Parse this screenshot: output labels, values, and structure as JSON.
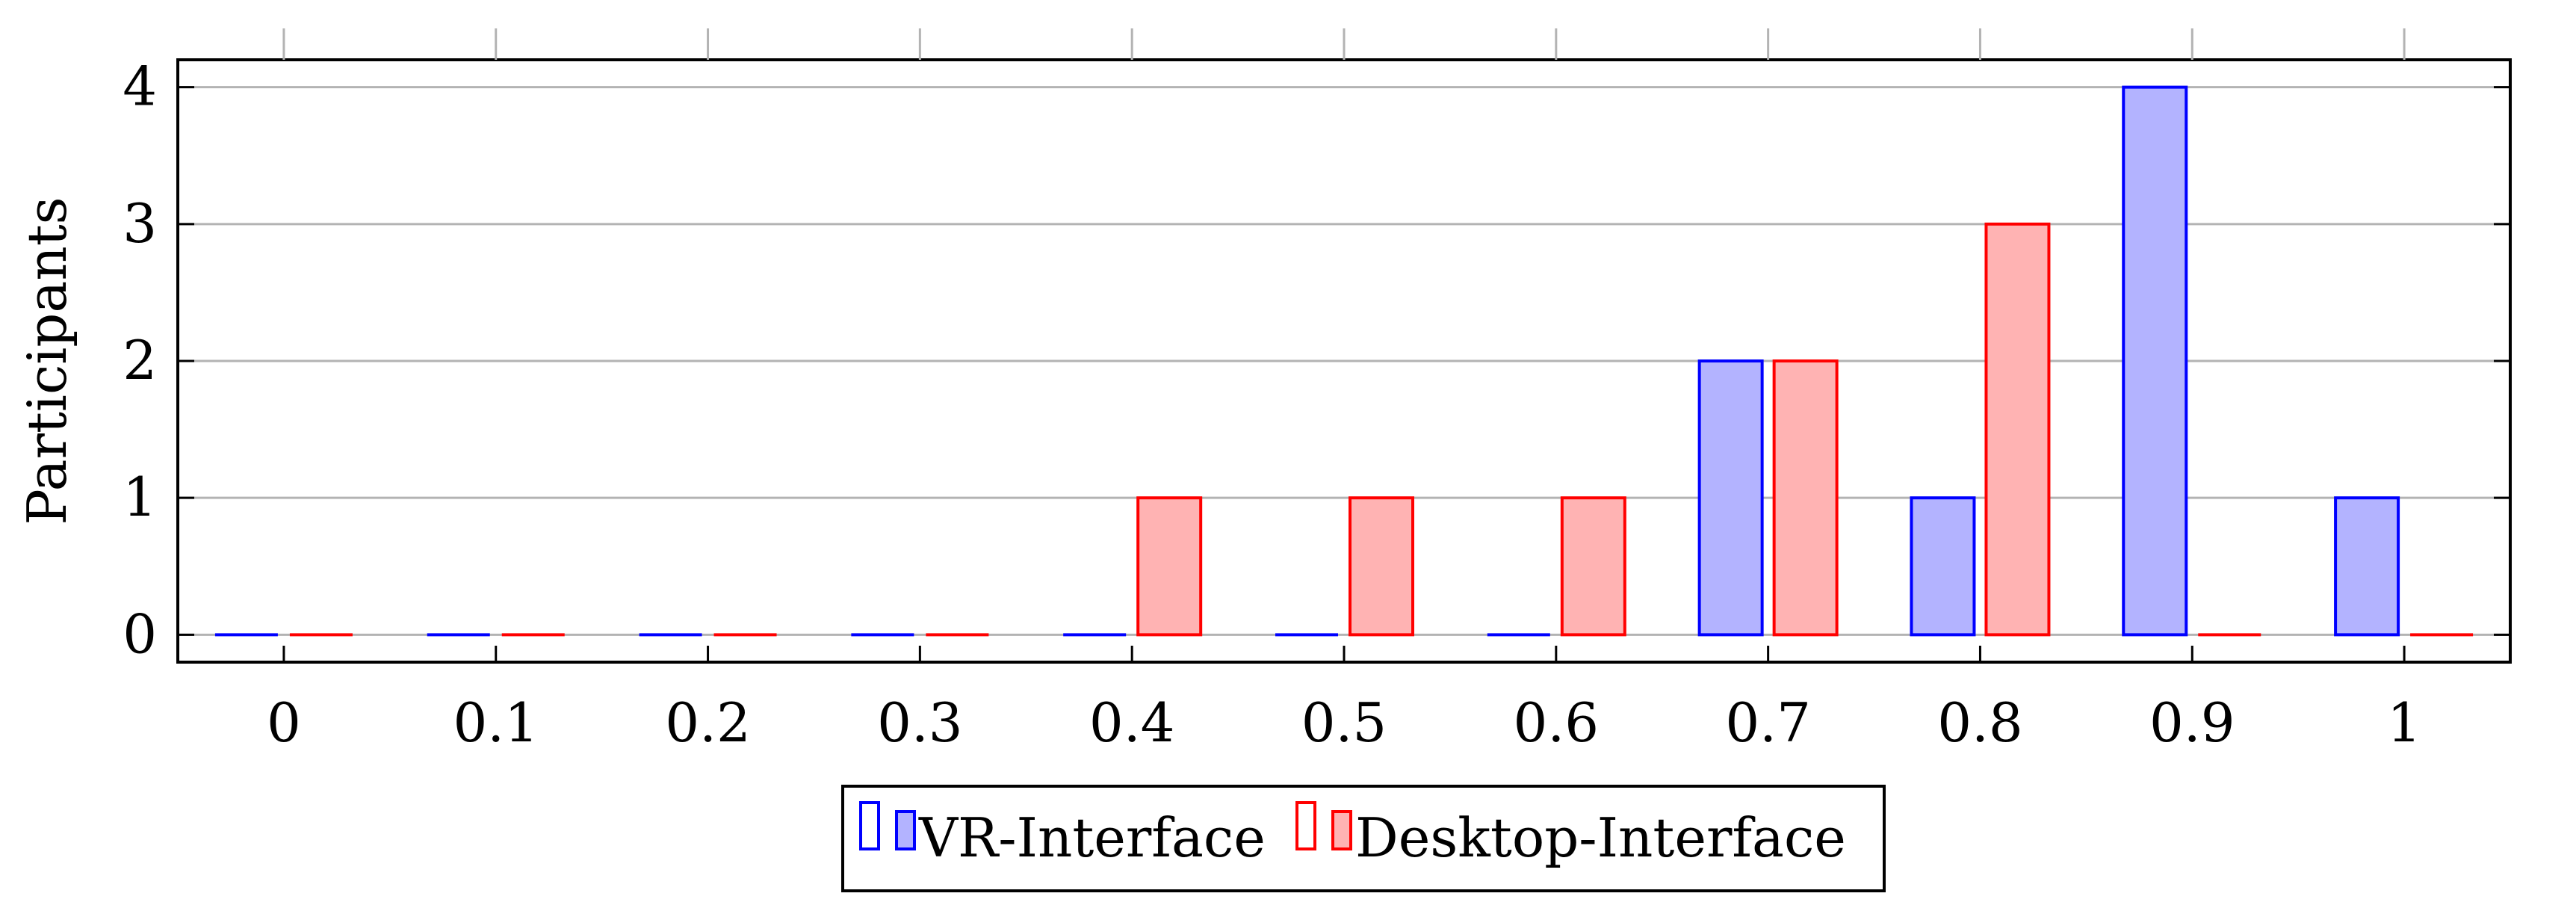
{
  "chart_data": {
    "type": "bar",
    "title": "",
    "xlabel": "",
    "ylabel": "Participants",
    "categories": [
      "0",
      "0.1",
      "0.2",
      "0.3",
      "0.4",
      "0.5",
      "0.6",
      "0.7",
      "0.8",
      "0.9",
      "1"
    ],
    "x": [
      0,
      0.1,
      0.2,
      0.3,
      0.4,
      0.5,
      0.6,
      0.7,
      0.8,
      0.9,
      1
    ],
    "series": [
      {
        "name": "VR-Interface",
        "values": [
          0,
          0,
          0,
          0,
          0,
          0,
          0,
          2,
          1,
          4,
          1
        ],
        "stroke": "#0000ff",
        "fill": "#b3b3ff"
      },
      {
        "name": "Desktop-Interface",
        "values": [
          0,
          0,
          0,
          0,
          1,
          1,
          1,
          2,
          3,
          0,
          0
        ],
        "stroke": "#ff0000",
        "fill": "#ffb3b3"
      }
    ],
    "yticks": [
      "0",
      "1",
      "2",
      "3",
      "4"
    ],
    "ylim": [
      -0.2,
      4.2
    ],
    "xlim": [
      -0.05,
      1.05
    ],
    "grid": "horizontal",
    "legend_position": "bottom-center"
  }
}
